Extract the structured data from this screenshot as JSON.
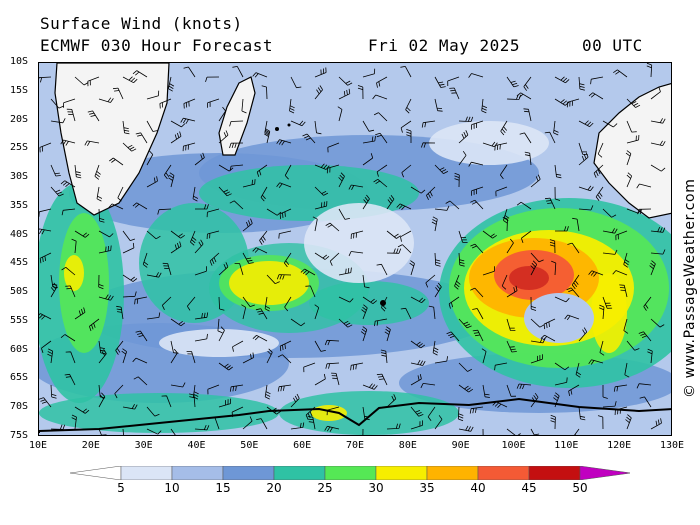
{
  "header": {
    "title": "Surface Wind (knots)",
    "model": "ECMWF 030 Hour Forecast",
    "date": "Fri 02 May 2025",
    "time": "00 UTC"
  },
  "credit": "© www.PassageWeather.com",
  "map": {
    "lat_labels": [
      "10S",
      "15S",
      "20S",
      "25S",
      "30S",
      "35S",
      "40S",
      "45S",
      "50S",
      "55S",
      "60S",
      "65S",
      "70S",
      "75S"
    ],
    "lon_labels": [
      "10E",
      "20E",
      "30E",
      "40E",
      "50E",
      "60E",
      "70E",
      "80E",
      "90E",
      "100E",
      "110E",
      "120E",
      "130E"
    ],
    "lat_range": [
      -10,
      -75
    ],
    "lon_range": [
      10,
      130
    ]
  },
  "legend": {
    "labels": [
      "5",
      "10",
      "15",
      "20",
      "25",
      "30",
      "35",
      "40",
      "45",
      "50"
    ],
    "colors": [
      "#ffffff",
      "#dbe5f6",
      "#a5bde8",
      "#6e97d6",
      "#2fc2a4",
      "#55e855",
      "#f6ee00",
      "#ffb300",
      "#f45a35",
      "#c40f10",
      "#c000c0"
    ]
  }
}
